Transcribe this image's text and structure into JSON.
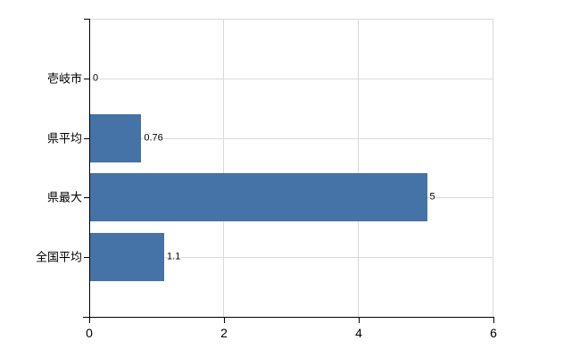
{
  "chart_data": {
    "type": "bar",
    "orientation": "horizontal",
    "title": "",
    "subtitle": "",
    "xlabel": "",
    "ylabel": "",
    "legend": "none",
    "grid": true,
    "categories": [
      "壱岐市",
      "県平均",
      "県最大",
      "全国平均"
    ],
    "values": [
      0,
      0.76,
      5,
      1.1
    ],
    "value_labels": [
      "0",
      "0.76",
      "5",
      "1.1"
    ],
    "xlim": [
      0,
      6
    ],
    "x_tick_labels": [
      "0",
      "2",
      "4",
      "6"
    ],
    "x_tick_values": [
      0,
      2,
      4,
      6
    ],
    "colors": {
      "bar": "#4572a7",
      "axis": "#000000",
      "gridline": "#d9d9d9",
      "text": "#000000",
      "background": "#ffffff"
    }
  }
}
